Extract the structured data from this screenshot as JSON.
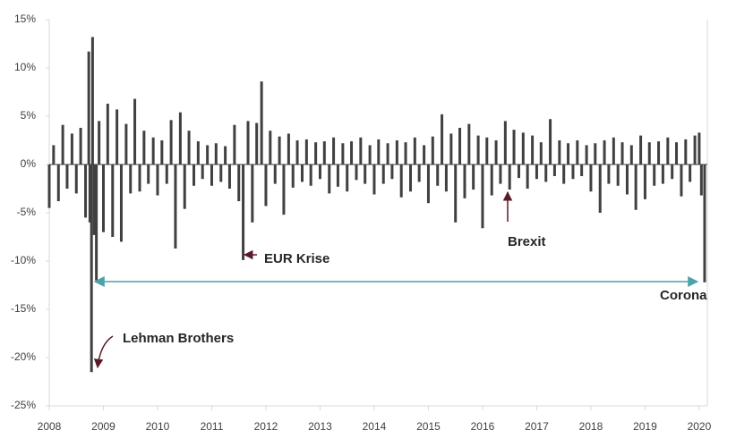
{
  "chart_data": {
    "type": "bar",
    "color": "#404040",
    "annotations": [
      "Lehman Brothers",
      "EUR Krise",
      "Brexit",
      "Corona"
    ],
    "x": [
      2008.0,
      2008.08,
      2008.17,
      2008.25,
      2008.33,
      2008.42,
      2008.5,
      2008.58,
      2008.67,
      2008.73,
      2008.75,
      2008.78,
      2008.8,
      2008.83,
      2008.87,
      2008.92,
      2009.0,
      2009.08,
      2009.17,
      2009.25,
      2009.33,
      2009.42,
      2009.5,
      2009.58,
      2009.67,
      2009.75,
      2009.83,
      2009.92,
      2010.0,
      2010.08,
      2010.17,
      2010.25,
      2010.33,
      2010.42,
      2010.5,
      2010.58,
      2010.67,
      2010.75,
      2010.83,
      2010.92,
      2011.0,
      2011.08,
      2011.17,
      2011.25,
      2011.33,
      2011.42,
      2011.5,
      2011.58,
      2011.67,
      2011.75,
      2011.83,
      2011.92,
      2012.0,
      2012.08,
      2012.17,
      2012.25,
      2012.33,
      2012.42,
      2012.5,
      2012.58,
      2012.67,
      2012.75,
      2012.83,
      2012.92,
      2013.0,
      2013.08,
      2013.17,
      2013.25,
      2013.33,
      2013.42,
      2013.5,
      2013.58,
      2013.67,
      2013.75,
      2013.83,
      2013.92,
      2014.0,
      2014.08,
      2014.17,
      2014.25,
      2014.33,
      2014.42,
      2014.5,
      2014.58,
      2014.67,
      2014.75,
      2014.83,
      2014.92,
      2015.0,
      2015.08,
      2015.17,
      2015.25,
      2015.33,
      2015.42,
      2015.5,
      2015.58,
      2015.67,
      2015.75,
      2015.83,
      2015.92,
      2016.0,
      2016.08,
      2016.17,
      2016.25,
      2016.33,
      2016.42,
      2016.5,
      2016.58,
      2016.67,
      2016.75,
      2016.83,
      2016.92,
      2017.0,
      2017.08,
      2017.17,
      2017.25,
      2017.33,
      2017.42,
      2017.5,
      2017.58,
      2017.67,
      2017.75,
      2017.83,
      2017.92,
      2018.0,
      2018.08,
      2018.17,
      2018.25,
      2018.33,
      2018.42,
      2018.5,
      2018.58,
      2018.67,
      2018.75,
      2018.83,
      2018.92,
      2019.0,
      2019.08,
      2019.17,
      2019.25,
      2019.33,
      2019.42,
      2019.5,
      2019.58,
      2019.67,
      2019.75,
      2019.83,
      2019.92,
      2020.0,
      2020.04,
      2020.1
    ],
    "values": [
      -4.5,
      2.0,
      -3.8,
      4.1,
      -2.5,
      3.2,
      -3.0,
      3.8,
      -5.5,
      11.7,
      -6.0,
      -21.5,
      13.2,
      -7.3,
      -12.0,
      4.5,
      -7.0,
      6.3,
      -7.5,
      5.7,
      -8.0,
      4.2,
      -3.0,
      6.8,
      -2.8,
      3.5,
      -2.0,
      2.8,
      -3.2,
      2.5,
      -2.0,
      4.6,
      -8.7,
      5.4,
      -4.6,
      3.5,
      -2.2,
      2.4,
      -1.5,
      2.0,
      -2.2,
      2.2,
      -1.8,
      1.9,
      -2.5,
      4.1,
      -3.8,
      -9.9,
      4.5,
      -6.0,
      4.3,
      8.6,
      -4.3,
      3.5,
      -2.0,
      2.9,
      -5.2,
      3.2,
      -2.4,
      2.5,
      -1.8,
      2.6,
      -2.2,
      2.3,
      -1.5,
      2.4,
      -3.0,
      2.8,
      -2.3,
      2.2,
      -2.8,
      2.4,
      -1.6,
      2.8,
      -2.0,
      2.0,
      -3.1,
      2.6,
      -2.0,
      2.2,
      -1.5,
      2.5,
      -3.4,
      2.3,
      -2.8,
      2.8,
      -1.8,
      2.0,
      -4.0,
      2.9,
      -2.2,
      5.2,
      -2.8,
      3.2,
      -6.0,
      3.8,
      -3.5,
      4.2,
      -2.6,
      3.0,
      -6.6,
      2.8,
      -3.2,
      2.5,
      -2.0,
      4.5,
      -2.6,
      3.6,
      -1.4,
      3.3,
      -2.5,
      3.0,
      -1.5,
      2.3,
      -1.8,
      4.7,
      -1.2,
      2.5,
      -2.0,
      2.2,
      -1.5,
      2.5,
      -1.2,
      2.0,
      -2.8,
      2.2,
      -5.0,
      2.5,
      -2.0,
      2.8,
      -2.2,
      2.3,
      -3.1,
      2.0,
      -4.7,
      3.0,
      -3.6,
      2.3,
      -2.2,
      2.4,
      -2.0,
      2.8,
      -1.5,
      2.3,
      -3.3,
      2.6,
      -1.8,
      3.0,
      3.3,
      -3.2,
      -12.2
    ],
    "xlim": [
      2008,
      2020.15
    ],
    "xticks": [
      2008,
      2009,
      2010,
      2011,
      2012,
      2013,
      2014,
      2015,
      2016,
      2017,
      2018,
      2019,
      2020
    ],
    "ylim": [
      -25,
      15
    ],
    "yticks": [
      {
        "value": 15,
        "label": "15%"
      },
      {
        "value": 10,
        "label": "10%"
      },
      {
        "value": 5,
        "label": "5%"
      },
      {
        "value": 0,
        "label": "0%"
      },
      {
        "value": -5,
        "label": "-5%"
      },
      {
        "value": -10,
        "label": "-10%"
      },
      {
        "value": -15,
        "label": "-15%"
      },
      {
        "value": -20,
        "label": "-20%"
      },
      {
        "value": -25,
        "label": "-25%"
      }
    ]
  }
}
